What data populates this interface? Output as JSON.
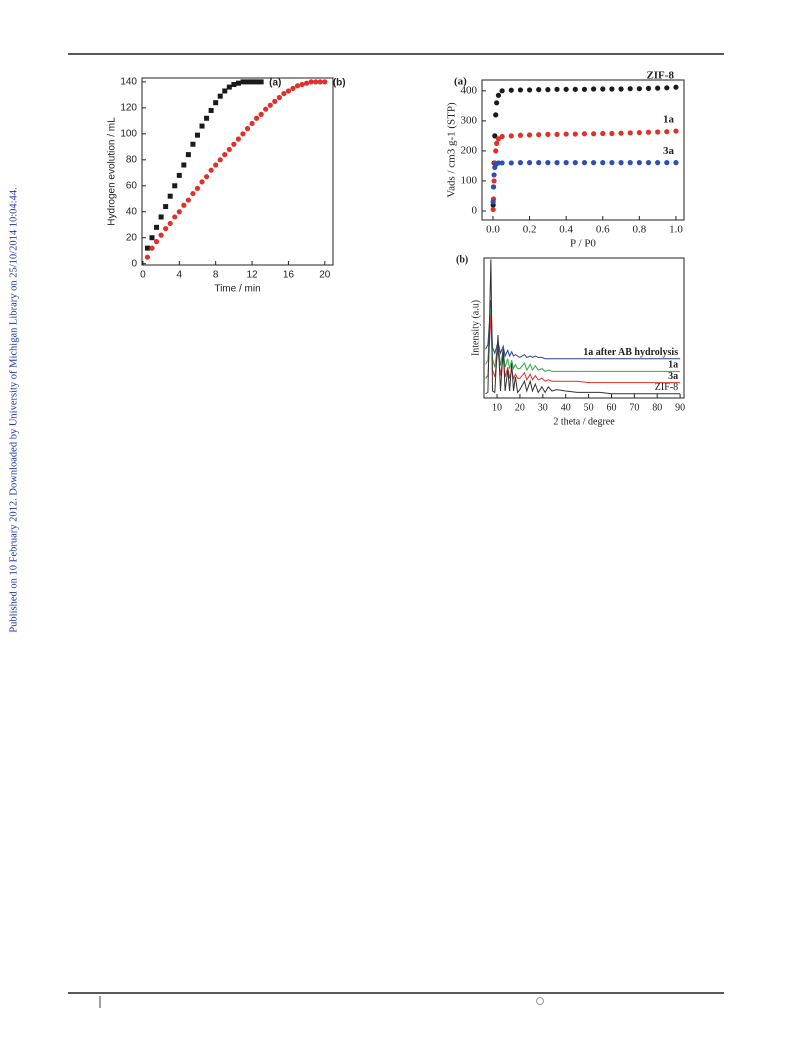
{
  "side_note": "Published on 10 February 2012. Downloaded by University of Michigan Library on 25/10/2014 10:04:44.",
  "chart_data": [
    {
      "type": "scatter",
      "xlabel": "Time / min",
      "ylabel": "Hydrogen evolution / mL",
      "xlim": [
        -0.1,
        20.9
      ],
      "ylim": [
        -1,
        143
      ],
      "xticks": [
        0,
        4,
        8,
        12,
        16,
        20
      ],
      "yticks": [
        0,
        20,
        40,
        60,
        80,
        100,
        120,
        140
      ],
      "series": [
        {
          "name": "(a)",
          "color": "#1a1a1a",
          "marker": "square",
          "x": [
            0.5,
            1,
            1.5,
            2,
            2.5,
            3,
            3.5,
            4,
            4.5,
            5,
            5.5,
            6,
            6.5,
            7,
            7.5,
            8,
            8.5,
            9,
            9.5,
            10,
            10.5,
            11,
            11.5,
            12,
            12.5,
            13
          ],
          "values": [
            12,
            20,
            28,
            36,
            44,
            52,
            60,
            68,
            76,
            84,
            92,
            99,
            106,
            112,
            118,
            124,
            129,
            133,
            136,
            138,
            139,
            140,
            140,
            140,
            140,
            140
          ]
        },
        {
          "name": "(b)",
          "color": "#e0302a",
          "marker": "circle",
          "x": [
            0.5,
            1,
            1.5,
            2,
            2.5,
            3,
            3.5,
            4,
            4.5,
            5,
            5.5,
            6,
            6.5,
            7,
            7.5,
            8,
            8.5,
            9,
            9.5,
            10,
            10.5,
            11,
            11.5,
            12,
            12.5,
            13,
            13.5,
            14,
            14.5,
            15,
            15.5,
            16,
            16.5,
            17,
            17.5,
            18,
            18.5,
            19,
            19.5,
            20
          ],
          "values": [
            5,
            12,
            17,
            22,
            27,
            31,
            36,
            40,
            45,
            49,
            54,
            58,
            63,
            67,
            72,
            76,
            80,
            84,
            88,
            92,
            96,
            100,
            104,
            108,
            112,
            115,
            119,
            122,
            125,
            128,
            131,
            133,
            135,
            137,
            138,
            139,
            140,
            140,
            140,
            140
          ]
        }
      ]
    },
    {
      "type": "scatter",
      "panel": "(a)",
      "xlabel": "P / P0",
      "ylabel": "Vads / cm3 g-1 (STP)",
      "xlim": [
        -0.06,
        1.044
      ],
      "ylim": [
        -30,
        436
      ],
      "xticks": [
        {
          "value": 0,
          "label": "0.0"
        },
        0.2,
        0.4,
        0.6,
        0.8,
        {
          "value": 1,
          "label": "1.0"
        }
      ],
      "yticks": [
        0,
        100,
        200,
        300,
        400
      ],
      "x": [
        0.001,
        0.003,
        0.006,
        0.01,
        0.015,
        0.02,
        0.03,
        0.05,
        0.1,
        0.15,
        0.2,
        0.25,
        0.3,
        0.35,
        0.4,
        0.45,
        0.5,
        0.55,
        0.6,
        0.65,
        0.7,
        0.75,
        0.8,
        0.85,
        0.9,
        0.95,
        1.0
      ],
      "series": [
        {
          "name": "ZIF-8",
          "color": "#1a1a1a",
          "marker": "circle",
          "values": [
            20,
            80,
            160,
            250,
            320,
            360,
            385,
            400,
            402,
            403,
            403,
            404,
            404,
            405,
            405,
            405,
            405,
            406,
            406,
            406,
            406,
            407,
            407,
            408,
            409,
            410,
            412
          ]
        },
        {
          "name": "1a",
          "color": "#e0302a",
          "marker": "circle",
          "values": [
            5,
            40,
            100,
            160,
            200,
            225,
            240,
            248,
            250,
            252,
            253,
            254,
            255,
            255,
            256,
            256,
            257,
            257,
            258,
            258,
            259,
            260,
            261,
            262,
            263,
            264,
            266
          ]
        },
        {
          "name": "3a",
          "color": "#2b4fb5",
          "marker": "circle",
          "values": [
            30,
            80,
            120,
            145,
            155,
            158,
            160,
            160,
            160,
            161,
            161,
            161,
            161,
            161,
            161,
            161,
            161,
            161,
            161,
            161,
            161,
            161,
            161,
            161,
            161,
            161,
            161
          ]
        }
      ]
    },
    {
      "type": "line",
      "panel": "(b)",
      "xlabel": "2 theta / degree",
      "ylabel": "Intensity (a.u)",
      "xlim": [
        4.3,
        91.7
      ],
      "ylim": [
        0,
        100
      ],
      "xticks": [
        10,
        20,
        30,
        40,
        50,
        60,
        70,
        80,
        90
      ],
      "x": [
        5,
        6,
        7.3,
        8,
        9,
        10.4,
        11.5,
        12.7,
        13.5,
        14.7,
        15.5,
        16.4,
        17.2,
        18,
        19,
        20,
        22,
        23,
        24.5,
        25.5,
        26.7,
        28,
        29.6,
        31,
        32.4,
        34,
        36,
        40,
        45,
        50,
        55,
        60,
        70,
        80,
        90
      ],
      "series": [
        {
          "name": "1a after AB hydrolysis",
          "color": "#2b3f9e",
          "values": [
            35,
            38,
            70,
            36,
            32,
            40,
            32,
            37,
            30,
            34,
            30,
            33,
            30,
            31,
            30,
            29,
            31,
            29,
            30,
            29,
            30,
            29,
            29,
            28,
            28,
            28,
            28,
            28,
            28,
            28,
            28,
            28,
            28,
            28,
            28
          ]
        },
        {
          "name": "1a",
          "color": "#2fa84f",
          "values": [
            24,
            27,
            65,
            28,
            22,
            40,
            23,
            35,
            22,
            28,
            21,
            27,
            21,
            24,
            21,
            21,
            25,
            20,
            24,
            20,
            23,
            20,
            21,
            19,
            20,
            19,
            19,
            19,
            19,
            19,
            19,
            19,
            19,
            19,
            19
          ]
        },
        {
          "name": "3a",
          "color": "#e0302a",
          "values": [
            14,
            16,
            60,
            20,
            15,
            35,
            16,
            30,
            15,
            22,
            14,
            20,
            14,
            17,
            14,
            14,
            18,
            13,
            17,
            13,
            16,
            13,
            14,
            12,
            13,
            12,
            12,
            12,
            12,
            11,
            11,
            11,
            11,
            11,
            11
          ]
        },
        {
          "name": "ZIF-8",
          "color": "#333333",
          "values": [
            3,
            4,
            99,
            5,
            4,
            45,
            5,
            35,
            5,
            20,
            5,
            25,
            5,
            15,
            4,
            6,
            12,
            5,
            12,
            5,
            10,
            4,
            8,
            4,
            8,
            5,
            6,
            5,
            4,
            4,
            4,
            3,
            3,
            3,
            3
          ]
        }
      ]
    }
  ]
}
